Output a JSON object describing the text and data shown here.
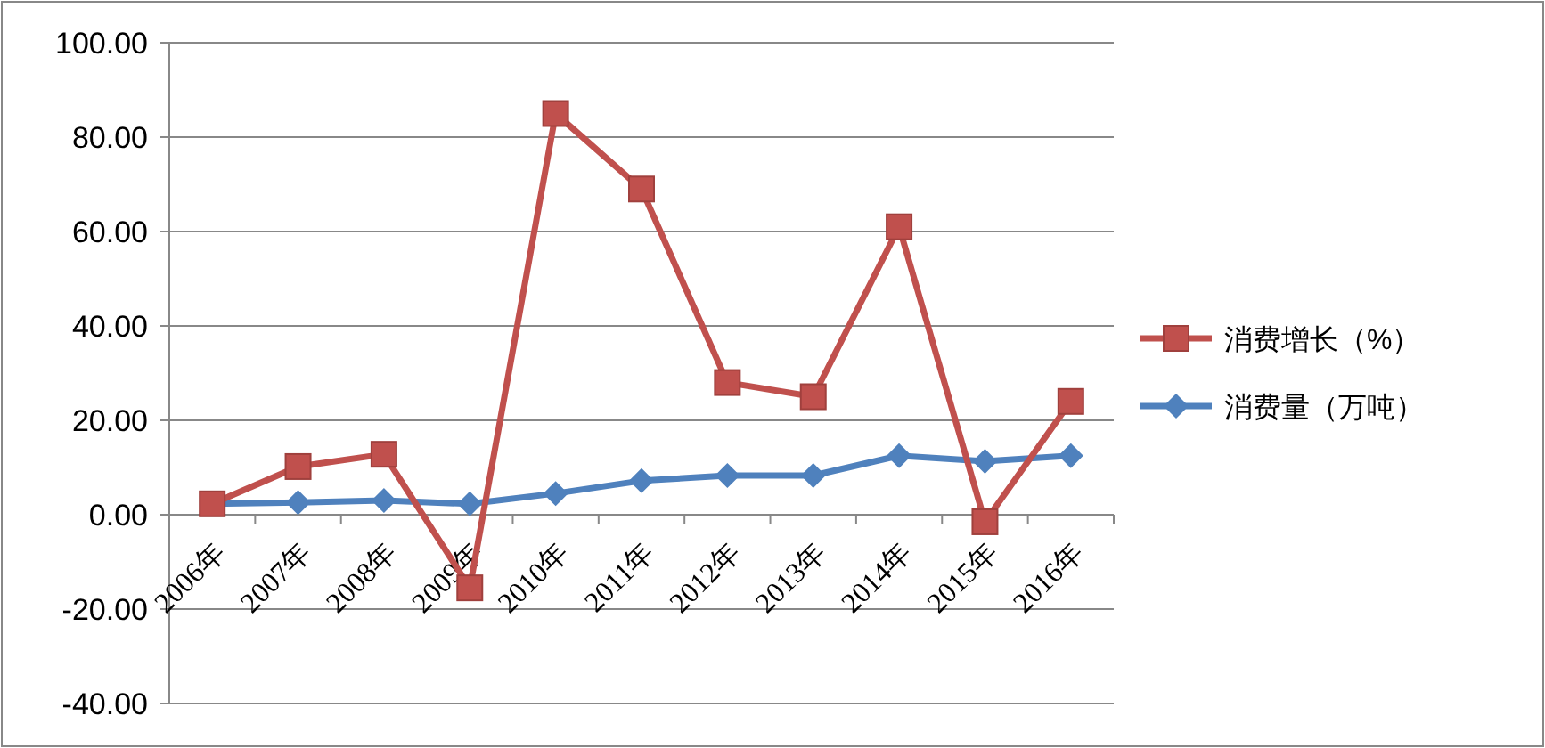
{
  "chart_data": {
    "type": "line",
    "categories": [
      "2006年",
      "2007年",
      "2008年",
      "2009年",
      "2010年",
      "2011年",
      "2012年",
      "2013年",
      "2014年",
      "2015年",
      "2016年"
    ],
    "series": [
      {
        "name": "消费增长（%）",
        "color": "#c0504d",
        "marker": "square",
        "values": [
          2.3,
          10.2,
          12.8,
          -15.5,
          85,
          69,
          28,
          25,
          61,
          -1.5,
          24
        ]
      },
      {
        "name": "消费量（万吨）",
        "color": "#4f81bd",
        "marker": "diamond",
        "values": [
          2.3,
          2.6,
          3.0,
          2.3,
          4.5,
          7.2,
          8.3,
          8.3,
          12.5,
          11.3,
          12.5
        ]
      }
    ],
    "ylim": [
      -40,
      100
    ],
    "yticks": [
      {
        "value": -40,
        "label": "-40.00"
      },
      {
        "value": -20,
        "label": "-20.00"
      },
      {
        "value": 0,
        "label": "0.00"
      },
      {
        "value": 20,
        "label": "20.00"
      },
      {
        "value": 40,
        "label": "40.00"
      },
      {
        "value": 60,
        "label": "60.00"
      },
      {
        "value": 80,
        "label": "80.00"
      },
      {
        "value": 100,
        "label": "100.00"
      }
    ],
    "grid": "y",
    "legend": "right"
  }
}
